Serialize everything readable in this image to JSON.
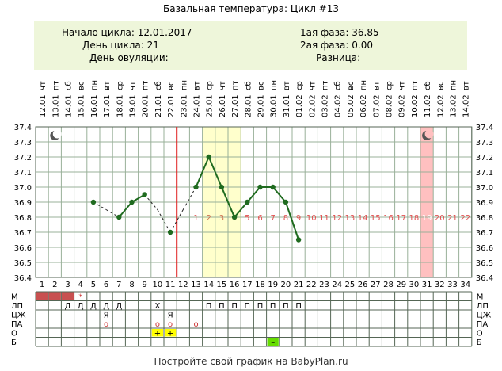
{
  "header": {
    "title": "Базальная температура: Цикл #13"
  },
  "info": {
    "cycle_start_label": "Начало цикла:",
    "cycle_start_value": "12.01.2017",
    "cycle_day_label": "День цикла:",
    "cycle_day_value": "21",
    "ovulation_day_label": "День овуляции:",
    "ovulation_day_value": "",
    "phase1_label": "1ая фаза:",
    "phase1_value": "36.85",
    "phase2_label": "2ая фаза:",
    "phase2_value": "0.00",
    "diff_label": "Разница:",
    "diff_value": ""
  },
  "footer": {
    "text": "Постройте свой график на BabyPlan.ru"
  },
  "chart_data": {
    "type": "line",
    "title": "Базальная температура: Цикл #13",
    "dates": [
      "12.01",
      "13.01",
      "14.01",
      "15.01",
      "16.01",
      "17.01",
      "18.01",
      "19.01",
      "20.01",
      "21.01",
      "22.01",
      "23.01",
      "24.01",
      "25.01",
      "26.01",
      "27.01",
      "28.01",
      "29.01",
      "30.01",
      "31.01",
      "01.02",
      "02.02",
      "03.02",
      "04.02",
      "05.02",
      "06.02",
      "07.02",
      "08.02",
      "09.02",
      "10.02",
      "11.02",
      "12.02",
      "13.02",
      "14.02"
    ],
    "weekdays": [
      "чт",
      "пт",
      "сб",
      "вс",
      "пн",
      "вт",
      "ср",
      "чт",
      "пт",
      "сб",
      "вс",
      "пн",
      "вт",
      "ср",
      "чт",
      "пт",
      "сб",
      "вс",
      "пн",
      "вт",
      "ср",
      "чт",
      "пт",
      "сб",
      "вс",
      "пн",
      "вт",
      "ср",
      "чт",
      "пт",
      "сб",
      "вс",
      "пн",
      "вт"
    ],
    "days": [
      1,
      2,
      3,
      4,
      5,
      6,
      7,
      8,
      9,
      10,
      11,
      12,
      13,
      14,
      15,
      16,
      17,
      18,
      19,
      20,
      21,
      22,
      23,
      24,
      25,
      26,
      27,
      28,
      29,
      30,
      31,
      32,
      33,
      34
    ],
    "yticks": [
      "37.4",
      "37.3",
      "37.2",
      "37.1",
      "37.0",
      "36.9",
      "36.8",
      "36.7",
      "36.6",
      "36.5",
      "36.4"
    ],
    "ylim": [
      36.4,
      37.4
    ],
    "series": [
      {
        "x": [
          5,
          6,
          7,
          8,
          9,
          10,
          11,
          12,
          13,
          14,
          15,
          16,
          17,
          18,
          19,
          20,
          21
        ],
        "y": [
          36.9,
          36.85,
          36.8,
          36.9,
          36.95,
          36.85,
          36.7,
          36.85,
          37.0,
          37.2,
          37.0,
          36.8,
          36.9,
          37.0,
          37.0,
          36.9,
          36.65
        ],
        "measured": [
          true,
          false,
          true,
          true,
          true,
          false,
          true,
          false,
          true,
          true,
          true,
          true,
          true,
          true,
          true,
          true,
          true
        ],
        "segment_style": [
          "dotted",
          "dotted",
          "solid",
          "solid",
          "dotted",
          "dotted",
          "dotted",
          "dotted",
          "solid",
          "solid",
          "solid",
          "solid",
          "solid",
          "solid",
          "solid",
          "solid"
        ]
      }
    ],
    "series_color": "#1f6b1f",
    "ovulation_marker_day": 12,
    "ovulation_marker_color": "#e02020",
    "highlight_days": [
      14,
      16
    ],
    "highlight_color": "#ffffcc",
    "period_marker_day": 31,
    "period_marker_color": "#ffc0c0",
    "moon_days": [
      2,
      31
    ],
    "phase2_day_labels": {
      "start_day": 13,
      "end_day": 34,
      "labels": [
        "1",
        "2",
        "3",
        "4",
        "5",
        "6",
        "7",
        "8",
        "9",
        "10",
        "11",
        "12",
        "13",
        "14",
        "15",
        "16",
        "17",
        "18",
        "19",
        "20",
        "21",
        "22"
      ]
    },
    "phase2_label_color": "#e05050",
    "phase2_label_color_highlight": "#ffffff",
    "grid": true
  },
  "rows": {
    "labels": [
      "М",
      "ЛП",
      "ЦЖ",
      "ПА",
      "О",
      "Б"
    ],
    "m_filled_days": [
      1,
      2,
      3
    ],
    "m_filled_color": "#c85050",
    "m_marks": [
      {
        "day": 4,
        "text": "*"
      }
    ],
    "lp_marks": [
      {
        "day": 3,
        "text": "Д"
      },
      {
        "day": 4,
        "text": "Д"
      },
      {
        "day": 5,
        "text": "Д"
      },
      {
        "day": 6,
        "text": "Д"
      },
      {
        "day": 7,
        "text": "Д"
      },
      {
        "day": 10,
        "text": "Х"
      },
      {
        "day": 14,
        "text": "П"
      },
      {
        "day": 15,
        "text": "П"
      },
      {
        "day": 16,
        "text": "П"
      },
      {
        "day": 17,
        "text": "П"
      },
      {
        "day": 18,
        "text": "П"
      },
      {
        "day": 19,
        "text": "П"
      },
      {
        "day": 20,
        "text": "П"
      },
      {
        "day": 21,
        "text": "П"
      }
    ],
    "cz_marks": [
      {
        "day": 6,
        "text": "Я"
      },
      {
        "day": 11,
        "text": "Я"
      }
    ],
    "pa_marks": [
      {
        "day": 6,
        "text": "o"
      },
      {
        "day": 10,
        "text": "o"
      },
      {
        "day": 11,
        "text": "o"
      },
      {
        "day": 13,
        "text": "o"
      }
    ],
    "o_marks": [
      {
        "day": 10,
        "text": "+",
        "bg": "#ffff00"
      },
      {
        "day": 11,
        "text": "+",
        "bg": "#ffff00"
      }
    ],
    "b_marks": [
      {
        "day": 19,
        "text": "–",
        "bg": "#66dd00"
      }
    ]
  }
}
